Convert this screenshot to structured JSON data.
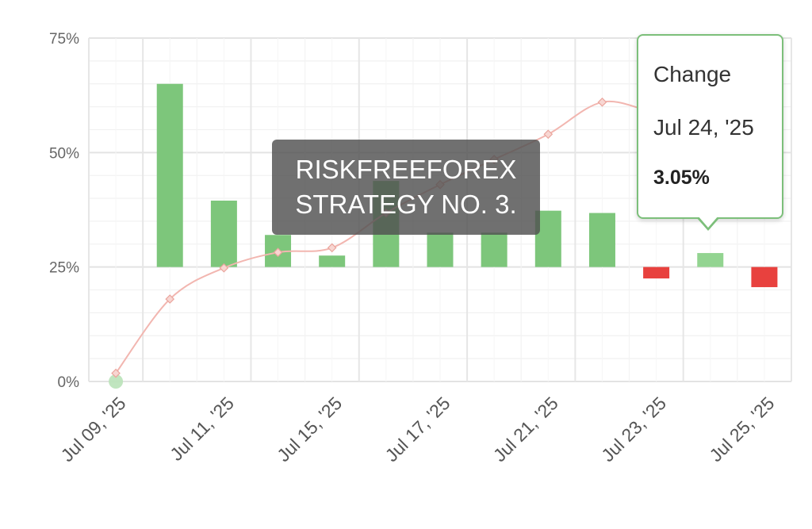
{
  "chart_data": {
    "type": "bar",
    "y_ticks": [
      "0%",
      "25%",
      "50%",
      "75%"
    ],
    "ylim": [
      0,
      75
    ],
    "baseline": 25,
    "x_tick_labels": [
      "Jul 09, '25",
      "Jul 11, '25",
      "Jul 15, '25",
      "Jul 17, '25",
      "Jul 21, '25",
      "Jul 23, '25",
      "Jul 25, '25"
    ],
    "bars": [
      {
        "date": "Jul 10, '25",
        "top": 65,
        "color": "#7dc67b"
      },
      {
        "date": "Jul 11, '25",
        "top": 39.5,
        "color": "#7dc67b"
      },
      {
        "date": "Jul 14, '25",
        "top": 32,
        "color": "#7dc67b"
      },
      {
        "date": "Jul 15, '25",
        "top": 27.5,
        "color": "#7dc67b"
      },
      {
        "date": "Jul 16, '25",
        "top": 43.8,
        "color": "#7dc67b"
      },
      {
        "date": "Jul 17, '25",
        "top": 32.5,
        "color": "#7dc67b"
      },
      {
        "date": "Jul 18, '25",
        "top": 32.5,
        "color": "#7dc67b"
      },
      {
        "date": "Jul 21, '25",
        "top": 37.3,
        "color": "#7dc67b"
      },
      {
        "date": "Jul 22, '25",
        "top": 36.8,
        "color": "#7dc67b"
      },
      {
        "date": "Jul 23, '25",
        "top": 22.5,
        "color": "#e8413e"
      },
      {
        "date": "Jul 24, '25",
        "top": 28.05,
        "color": "#93d491"
      },
      {
        "date": "Jul 25, '25",
        "top": 20.6,
        "color": "#e8413e"
      }
    ],
    "line": {
      "color": "#f2b6b0",
      "values": [
        1.8,
        18,
        24.8,
        28.2,
        29.2,
        36.8,
        43,
        48.5,
        54,
        61,
        59,
        60
      ]
    },
    "grid": true
  },
  "watermark": {
    "line1": "RISKFREEFOREX",
    "line2": "STRATEGY NO. 3."
  },
  "tooltip": {
    "title": "Change",
    "date": "Jul 24, '25",
    "value": "3.05%"
  }
}
